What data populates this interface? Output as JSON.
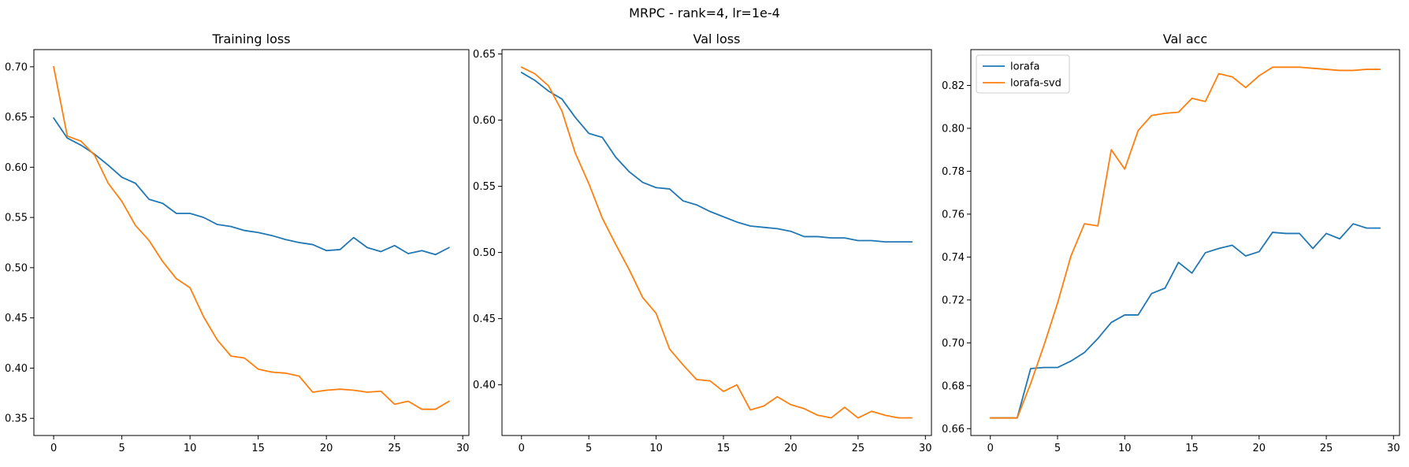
{
  "figure": {
    "suptitle": "MRPC - rank=4, lr=1e-4"
  },
  "colors": {
    "lorafa": "#1f77b4",
    "lorafa-svd": "#ff7f0e"
  },
  "chart_data": [
    {
      "type": "line",
      "title": "Training loss",
      "xlabel": "",
      "ylabel": "",
      "xlim": [
        -1.45,
        30.45
      ],
      "ylim": [
        0.3329,
        0.7171
      ],
      "xticks": [
        0,
        5,
        10,
        15,
        20,
        25,
        30
      ],
      "yticks": [
        0.35,
        0.4,
        0.45,
        0.5,
        0.55,
        0.6,
        0.65,
        0.7
      ],
      "ytick_labels": [
        "0.35",
        "0.40",
        "0.45",
        "0.50",
        "0.55",
        "0.60",
        "0.65",
        "0.70"
      ],
      "legend": false,
      "x": [
        0,
        1,
        2,
        3,
        4,
        5,
        6,
        7,
        8,
        9,
        10,
        11,
        12,
        13,
        14,
        15,
        16,
        17,
        18,
        19,
        20,
        21,
        22,
        23,
        24,
        25,
        26,
        27,
        28,
        29
      ],
      "series": [
        {
          "key": "lorafa",
          "values": [
            0.649,
            0.629,
            0.622,
            0.613,
            0.602,
            0.59,
            0.584,
            0.568,
            0.564,
            0.554,
            0.554,
            0.55,
            0.543,
            0.541,
            0.537,
            0.535,
            0.532,
            0.528,
            0.525,
            0.523,
            0.517,
            0.518,
            0.53,
            0.52,
            0.516,
            0.522,
            0.514,
            0.517,
            0.513,
            0.52
          ]
        },
        {
          "key": "lorafa-svd",
          "values": [
            0.7,
            0.631,
            0.626,
            0.612,
            0.584,
            0.566,
            0.542,
            0.527,
            0.506,
            0.489,
            0.48,
            0.451,
            0.428,
            0.412,
            0.41,
            0.399,
            0.396,
            0.395,
            0.392,
            0.376,
            0.378,
            0.379,
            0.378,
            0.376,
            0.377,
            0.364,
            0.367,
            0.359,
            0.359,
            0.367
          ]
        }
      ]
    },
    {
      "type": "line",
      "title": "Val loss",
      "xlabel": "",
      "ylabel": "",
      "xlim": [
        -1.45,
        30.45
      ],
      "ylim": [
        0.3617,
        0.6533
      ],
      "xticks": [
        0,
        5,
        10,
        15,
        20,
        25,
        30
      ],
      "yticks": [
        0.4,
        0.45,
        0.5,
        0.55,
        0.6,
        0.65
      ],
      "ytick_labels": [
        "0.40",
        "0.45",
        "0.50",
        "0.55",
        "0.60",
        "0.65"
      ],
      "legend": false,
      "x": [
        0,
        1,
        2,
        3,
        4,
        5,
        6,
        7,
        8,
        9,
        10,
        11,
        12,
        13,
        14,
        15,
        16,
        17,
        18,
        19,
        20,
        21,
        22,
        23,
        24,
        25,
        26,
        27,
        28,
        29
      ],
      "series": [
        {
          "key": "lorafa",
          "values": [
            0.636,
            0.63,
            0.622,
            0.616,
            0.602,
            0.59,
            0.587,
            0.572,
            0.561,
            0.553,
            0.549,
            0.548,
            0.539,
            0.536,
            0.531,
            0.527,
            0.523,
            0.52,
            0.519,
            0.518,
            0.516,
            0.512,
            0.512,
            0.511,
            0.511,
            0.509,
            0.509,
            0.508,
            0.508,
            0.508
          ]
        },
        {
          "key": "lorafa-svd",
          "values": [
            0.64,
            0.635,
            0.626,
            0.607,
            0.575,
            0.552,
            0.526,
            0.506,
            0.487,
            0.466,
            0.454,
            0.427,
            0.415,
            0.404,
            0.403,
            0.395,
            0.4,
            0.381,
            0.384,
            0.391,
            0.385,
            0.382,
            0.377,
            0.375,
            0.383,
            0.375,
            0.38,
            0.377,
            0.375,
            0.375
          ]
        }
      ]
    },
    {
      "type": "line",
      "title": "Val acc",
      "xlabel": "",
      "ylabel": "",
      "xlim": [
        -1.45,
        30.45
      ],
      "ylim": [
        0.6568,
        0.8367
      ],
      "xticks": [
        0,
        5,
        10,
        15,
        20,
        25,
        30
      ],
      "yticks": [
        0.66,
        0.68,
        0.7,
        0.72,
        0.74,
        0.76,
        0.78,
        0.8,
        0.82
      ],
      "ytick_labels": [
        "0.66",
        "0.68",
        "0.70",
        "0.72",
        "0.74",
        "0.76",
        "0.78",
        "0.80",
        "0.82"
      ],
      "legend": true,
      "legend_loc": "upper-left",
      "x": [
        0,
        1,
        2,
        3,
        4,
        5,
        6,
        7,
        8,
        9,
        10,
        11,
        12,
        13,
        14,
        15,
        16,
        17,
        18,
        19,
        20,
        21,
        22,
        23,
        24,
        25,
        26,
        27,
        28,
        29
      ],
      "series": [
        {
          "key": "lorafa",
          "name": "lorafa",
          "values": [
            0.665,
            0.665,
            0.665,
            0.688,
            0.6885,
            0.6885,
            0.6915,
            0.6955,
            0.702,
            0.7095,
            0.713,
            0.713,
            0.723,
            0.7255,
            0.7375,
            0.7325,
            0.742,
            0.744,
            0.7455,
            0.7405,
            0.7425,
            0.7515,
            0.751,
            0.751,
            0.744,
            0.751,
            0.7485,
            0.7555,
            0.7535,
            0.7535
          ]
        },
        {
          "key": "lorafa-svd",
          "name": "lorafa-svd",
          "values": [
            0.665,
            0.665,
            0.665,
            0.681,
            0.699,
            0.7185,
            0.7405,
            0.7555,
            0.7545,
            0.79,
            0.781,
            0.799,
            0.806,
            0.807,
            0.8075,
            0.814,
            0.8125,
            0.8255,
            0.824,
            0.819,
            0.8245,
            0.8285,
            0.8285,
            0.8285,
            0.828,
            0.8275,
            0.827,
            0.827,
            0.8275,
            0.8275
          ]
        }
      ]
    }
  ]
}
